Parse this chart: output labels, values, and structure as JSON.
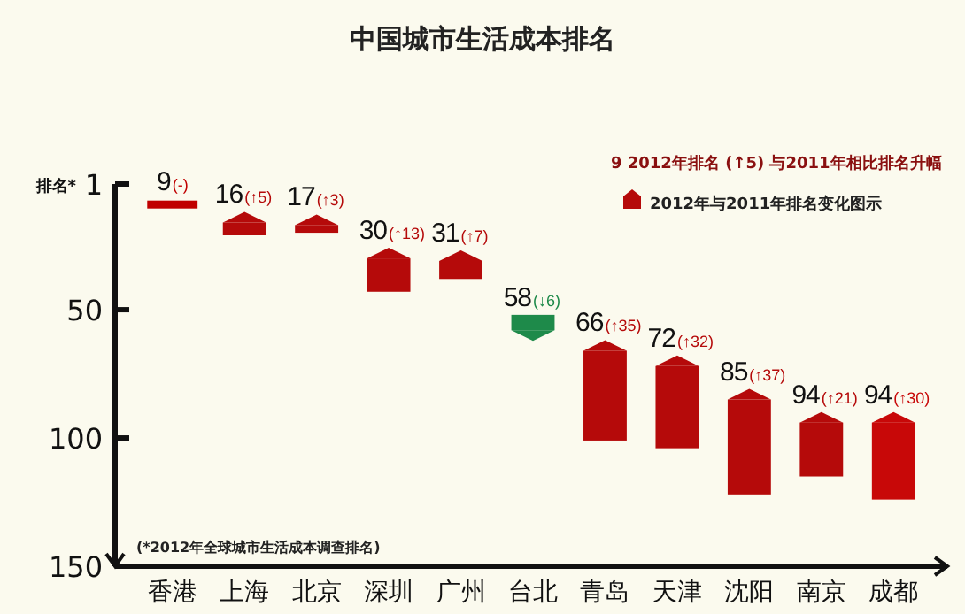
{
  "chart_data": {
    "type": "bar",
    "title": "中国城市生活成本排名",
    "ylabel": "排名*",
    "categories": [
      "香港",
      "上海",
      "北京",
      "深圳",
      "广州",
      "台北",
      "青岛",
      "天津",
      "沈阳",
      "南京",
      "成都"
    ],
    "ylim": [
      150,
      1
    ],
    "yticks": [
      1,
      50,
      100,
      150
    ],
    "legend": "top right",
    "series": [
      {
        "name": "2012年与2011年排名变化图示",
        "color": "#b50a0a",
        "colors": [
          "#c00000",
          "#b50a0a",
          "#b50a0a",
          "#b50a0a",
          "#b50a0a",
          "#1e8a4a",
          "#b50a0a",
          "#b50a0a",
          "#b50a0a",
          "#b50a0a",
          "#c80808"
        ],
        "base": [
          9,
          21,
          20,
          43,
          38,
          52,
          101,
          104,
          122,
          115,
          124
        ],
        "values": [
          0,
          -5,
          -3,
          -13,
          -7,
          6,
          -35,
          -32,
          -37,
          -21,
          -30
        ],
        "value_labels": [
          "9",
          "16",
          "17",
          "30",
          "31",
          "58",
          "66",
          "72",
          "85",
          "94",
          "94"
        ]
      }
    ],
    "annotations": [
      {
        "text": "(-)",
        "x": "香港",
        "y": 9
      },
      {
        "text": "(↑5)",
        "x": "上海",
        "y": 16
      },
      {
        "text": "(↑3)",
        "x": "北京",
        "y": 17
      },
      {
        "text": "(↑13)",
        "x": "深圳",
        "y": 30
      },
      {
        "text": "(↑7)",
        "x": "广州",
        "y": 31
      },
      {
        "text": "(↓6)",
        "x": "台北",
        "y": 58
      },
      {
        "text": "(↑35)",
        "x": "青岛",
        "y": 66
      },
      {
        "text": "(↑32)",
        "x": "天津",
        "y": 72
      },
      {
        "text": "(↑37)",
        "x": "沈阳",
        "y": 85
      },
      {
        "text": "(↑21)",
        "x": "南京",
        "y": 94
      },
      {
        "text": "(↑30)",
        "x": "成都",
        "y": 94
      },
      "9 2012年排名 (↑5) 与2011年相比排名升幅",
      "(*2012年全球城市生活成本调查排名)"
    ]
  }
}
